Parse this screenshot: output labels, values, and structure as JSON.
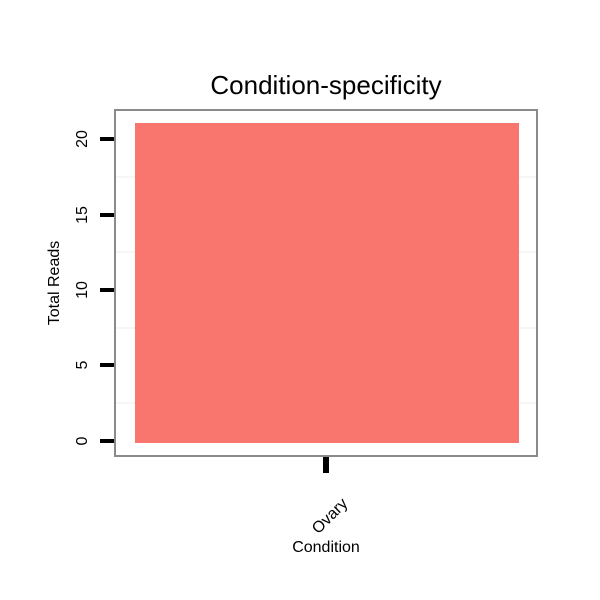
{
  "chart_data": {
    "type": "bar",
    "title": "Condition-specificity",
    "xlabel": "Condition",
    "ylabel": "Total Reads",
    "categories": [
      "Ovary"
    ],
    "values": [
      21
    ],
    "ylim": [
      -1,
      22
    ],
    "yticks": [
      "0",
      "5",
      "10",
      "15",
      "20"
    ],
    "minor_grid_values": [
      2.5,
      7.5,
      12.5,
      17.5
    ],
    "grid": "very faint minor horizontal gridlines only",
    "legend_position": "none",
    "colors": {
      "bar_fill": "#F8766D",
      "panel_border": "#8a8a8a",
      "tick": "#000000",
      "text": "#000000",
      "minor_grid": "#faf5f5",
      "background": "#ffffff"
    }
  }
}
